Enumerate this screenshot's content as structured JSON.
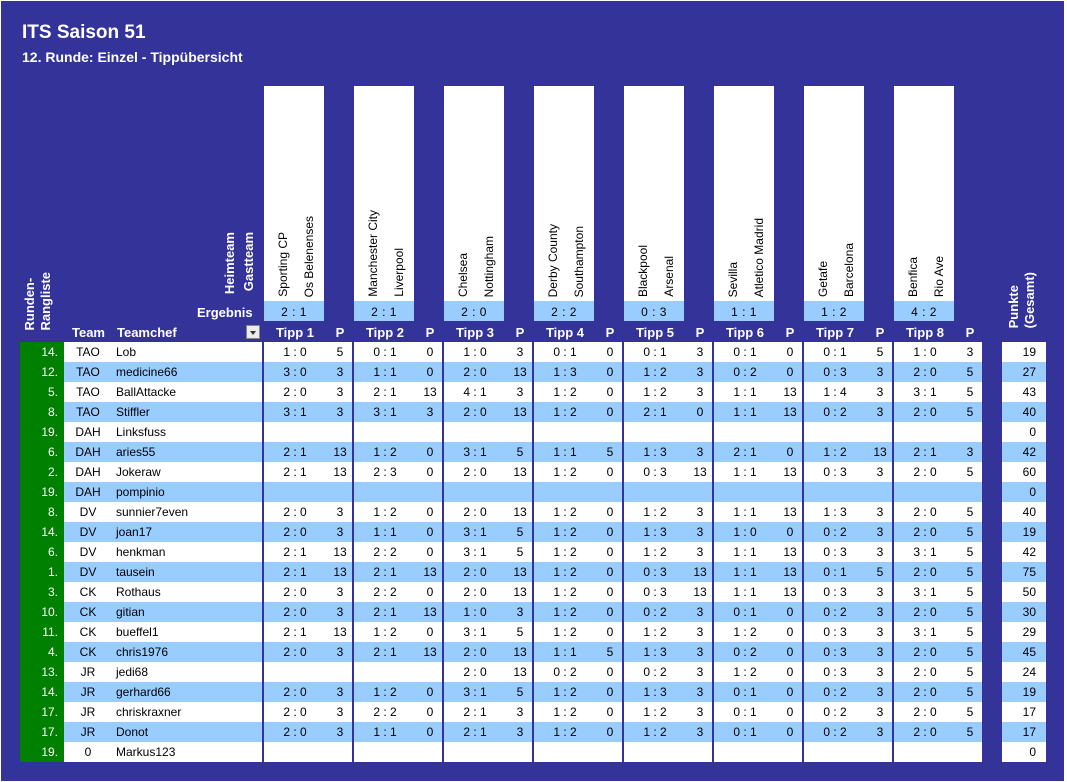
{
  "title": "ITS Saison 51",
  "subtitle": "12. Runde: Einzel - Tippübersicht",
  "labels": {
    "heimteam": "Heimteam",
    "gastteam": "Gastteam",
    "ergebnis": "Ergebnis",
    "runden_rangliste": "Runden-\nRangliste",
    "team": "Team",
    "teamchef": "Teamchef",
    "punkte_gesamt": "Punkte\n(Gesamt)",
    "p": "P"
  },
  "matches": [
    {
      "tipp_label": "Tipp 1",
      "home": "Sporting CP",
      "away": "Os Belenenses",
      "result": "2 : 1"
    },
    {
      "tipp_label": "Tipp 2",
      "home": "Manchester City",
      "away": "Liverpool",
      "result": "2 : 1"
    },
    {
      "tipp_label": "Tipp 3",
      "home": "Chelsea",
      "away": "Nottingham",
      "result": "2 : 0"
    },
    {
      "tipp_label": "Tipp 4",
      "home": "Derby County",
      "away": "Southampton",
      "result": "2 : 2"
    },
    {
      "tipp_label": "Tipp 5",
      "home": "Blackpool",
      "away": "Arsenal",
      "result": "0 : 3"
    },
    {
      "tipp_label": "Tipp 6",
      "home": "Sevilla",
      "away": "Atletico Madrid",
      "result": "1 : 1"
    },
    {
      "tipp_label": "Tipp 7",
      "home": "Getafe",
      "away": "Barcelona",
      "result": "1 : 2"
    },
    {
      "tipp_label": "Tipp 8",
      "home": "Benfica",
      "away": "Rio Ave",
      "result": "4 : 2"
    }
  ],
  "rows": [
    {
      "rank": "14.",
      "team": "TAO",
      "chef": "Lob",
      "tips": [
        [
          "1 : 0",
          "5"
        ],
        [
          "0 : 1",
          "0"
        ],
        [
          "1 : 0",
          "3"
        ],
        [
          "0 : 1",
          "0"
        ],
        [
          "0 : 1",
          "3"
        ],
        [
          "0 : 1",
          "0"
        ],
        [
          "0 : 1",
          "5"
        ],
        [
          "1 : 0",
          "3"
        ]
      ],
      "total": "19"
    },
    {
      "rank": "12.",
      "team": "TAO",
      "chef": "medicine66",
      "tips": [
        [
          "3 : 0",
          "3"
        ],
        [
          "1 : 1",
          "0"
        ],
        [
          "2 : 0",
          "13"
        ],
        [
          "1 : 3",
          "0"
        ],
        [
          "1 : 2",
          "3"
        ],
        [
          "0 : 2",
          "0"
        ],
        [
          "0 : 3",
          "3"
        ],
        [
          "2 : 0",
          "5"
        ]
      ],
      "total": "27"
    },
    {
      "rank": "5.",
      "team": "TAO",
      "chef": "BallAttacke",
      "tips": [
        [
          "2 : 0",
          "3"
        ],
        [
          "2 : 1",
          "13"
        ],
        [
          "4 : 1",
          "3"
        ],
        [
          "1 : 2",
          "0"
        ],
        [
          "1 : 2",
          "3"
        ],
        [
          "1 : 1",
          "13"
        ],
        [
          "1 : 4",
          "3"
        ],
        [
          "3 : 1",
          "5"
        ]
      ],
      "total": "43"
    },
    {
      "rank": "8.",
      "team": "TAO",
      "chef": "Stiffler",
      "tips": [
        [
          "3 : 1",
          "3"
        ],
        [
          "3 : 1",
          "3"
        ],
        [
          "2 : 0",
          "13"
        ],
        [
          "1 : 2",
          "0"
        ],
        [
          "2 : 1",
          "0"
        ],
        [
          "1 : 1",
          "13"
        ],
        [
          "0 : 2",
          "3"
        ],
        [
          "2 : 0",
          "5"
        ]
      ],
      "total": "40"
    },
    {
      "rank": "19.",
      "team": "DAH",
      "chef": "Linksfuss",
      "tips": [
        [
          "",
          ""
        ],
        [
          "",
          ""
        ],
        [
          "",
          ""
        ],
        [
          "",
          ""
        ],
        [
          "",
          ""
        ],
        [
          "",
          ""
        ],
        [
          "",
          ""
        ],
        [
          "",
          ""
        ]
      ],
      "total": "0"
    },
    {
      "rank": "6.",
      "team": "DAH",
      "chef": "aries55",
      "tips": [
        [
          "2 : 1",
          "13"
        ],
        [
          "1 : 2",
          "0"
        ],
        [
          "3 : 1",
          "5"
        ],
        [
          "1 : 1",
          "5"
        ],
        [
          "1 : 3",
          "3"
        ],
        [
          "2 : 1",
          "0"
        ],
        [
          "1 : 2",
          "13"
        ],
        [
          "2 : 1",
          "3"
        ]
      ],
      "total": "42"
    },
    {
      "rank": "2.",
      "team": "DAH",
      "chef": "Jokeraw",
      "tips": [
        [
          "2 : 1",
          "13"
        ],
        [
          "2 : 3",
          "0"
        ],
        [
          "2 : 0",
          "13"
        ],
        [
          "1 : 2",
          "0"
        ],
        [
          "0 : 3",
          "13"
        ],
        [
          "1 : 1",
          "13"
        ],
        [
          "0 : 3",
          "3"
        ],
        [
          "2 : 0",
          "5"
        ]
      ],
      "total": "60"
    },
    {
      "rank": "19.",
      "team": "DAH",
      "chef": "pompinio",
      "tips": [
        [
          "",
          ""
        ],
        [
          "",
          ""
        ],
        [
          "",
          ""
        ],
        [
          "",
          ""
        ],
        [
          "",
          ""
        ],
        [
          "",
          ""
        ],
        [
          "",
          ""
        ],
        [
          "",
          ""
        ]
      ],
      "total": "0"
    },
    {
      "rank": "8.",
      "team": "DV",
      "chef": "sunnier7even",
      "tips": [
        [
          "2 : 0",
          "3"
        ],
        [
          "1 : 2",
          "0"
        ],
        [
          "2 : 0",
          "13"
        ],
        [
          "1 : 2",
          "0"
        ],
        [
          "1 : 2",
          "3"
        ],
        [
          "1 : 1",
          "13"
        ],
        [
          "1 : 3",
          "3"
        ],
        [
          "2 : 0",
          "5"
        ]
      ],
      "total": "40"
    },
    {
      "rank": "14.",
      "team": "DV",
      "chef": "joan17",
      "tips": [
        [
          "2 : 0",
          "3"
        ],
        [
          "1 : 1",
          "0"
        ],
        [
          "3 : 1",
          "5"
        ],
        [
          "1 : 2",
          "0"
        ],
        [
          "1 : 3",
          "3"
        ],
        [
          "1 : 0",
          "0"
        ],
        [
          "0 : 2",
          "3"
        ],
        [
          "2 : 0",
          "5"
        ]
      ],
      "total": "19"
    },
    {
      "rank": "6.",
      "team": "DV",
      "chef": "henkman",
      "tips": [
        [
          "2 : 1",
          "13"
        ],
        [
          "2 : 2",
          "0"
        ],
        [
          "3 : 1",
          "5"
        ],
        [
          "1 : 2",
          "0"
        ],
        [
          "1 : 2",
          "3"
        ],
        [
          "1 : 1",
          "13"
        ],
        [
          "0 : 3",
          "3"
        ],
        [
          "3 : 1",
          "5"
        ]
      ],
      "total": "42"
    },
    {
      "rank": "1.",
      "team": "DV",
      "chef": "tausein",
      "tips": [
        [
          "2 : 1",
          "13"
        ],
        [
          "2 : 1",
          "13"
        ],
        [
          "2 : 0",
          "13"
        ],
        [
          "1 : 2",
          "0"
        ],
        [
          "0 : 3",
          "13"
        ],
        [
          "1 : 1",
          "13"
        ],
        [
          "0 : 1",
          "5"
        ],
        [
          "2 : 0",
          "5"
        ]
      ],
      "total": "75"
    },
    {
      "rank": "3.",
      "team": "CK",
      "chef": "Rothaus",
      "tips": [
        [
          "2 : 0",
          "3"
        ],
        [
          "2 : 2",
          "0"
        ],
        [
          "2 : 0",
          "13"
        ],
        [
          "1 : 2",
          "0"
        ],
        [
          "0 : 3",
          "13"
        ],
        [
          "1 : 1",
          "13"
        ],
        [
          "0 : 3",
          "3"
        ],
        [
          "3 : 1",
          "5"
        ]
      ],
      "total": "50"
    },
    {
      "rank": "10.",
      "team": "CK",
      "chef": "gitian",
      "tips": [
        [
          "2 : 0",
          "3"
        ],
        [
          "2 : 1",
          "13"
        ],
        [
          "1 : 0",
          "3"
        ],
        [
          "1 : 2",
          "0"
        ],
        [
          "0 : 2",
          "3"
        ],
        [
          "0 : 1",
          "0"
        ],
        [
          "0 : 2",
          "3"
        ],
        [
          "2 : 0",
          "5"
        ]
      ],
      "total": "30"
    },
    {
      "rank": "11.",
      "team": "CK",
      "chef": "bueffel1",
      "tips": [
        [
          "2 : 1",
          "13"
        ],
        [
          "1 : 2",
          "0"
        ],
        [
          "3 : 1",
          "5"
        ],
        [
          "1 : 2",
          "0"
        ],
        [
          "1 : 2",
          "3"
        ],
        [
          "1 : 2",
          "0"
        ],
        [
          "0 : 3",
          "3"
        ],
        [
          "3 : 1",
          "5"
        ]
      ],
      "total": "29"
    },
    {
      "rank": "4.",
      "team": "CK",
      "chef": "chris1976",
      "tips": [
        [
          "2 : 0",
          "3"
        ],
        [
          "2 : 1",
          "13"
        ],
        [
          "2 : 0",
          "13"
        ],
        [
          "1 : 1",
          "5"
        ],
        [
          "1 : 3",
          "3"
        ],
        [
          "0 : 2",
          "0"
        ],
        [
          "0 : 3",
          "3"
        ],
        [
          "2 : 0",
          "5"
        ]
      ],
      "total": "45"
    },
    {
      "rank": "13.",
      "team": "JR",
      "chef": "jedi68",
      "tips": [
        [
          "",
          ""
        ],
        [
          "",
          ""
        ],
        [
          "2 : 0",
          "13"
        ],
        [
          "0 : 2",
          "0"
        ],
        [
          "0 : 2",
          "3"
        ],
        [
          "1 : 2",
          "0"
        ],
        [
          "0 : 3",
          "3"
        ],
        [
          "2 : 0",
          "5"
        ]
      ],
      "total": "24"
    },
    {
      "rank": "14.",
      "team": "JR",
      "chef": "gerhard66",
      "tips": [
        [
          "2 : 0",
          "3"
        ],
        [
          "1 : 2",
          "0"
        ],
        [
          "3 : 1",
          "5"
        ],
        [
          "1 : 2",
          "0"
        ],
        [
          "1 : 3",
          "3"
        ],
        [
          "0 : 1",
          "0"
        ],
        [
          "0 : 2",
          "3"
        ],
        [
          "2 : 0",
          "5"
        ]
      ],
      "total": "19"
    },
    {
      "rank": "17.",
      "team": "JR",
      "chef": "chriskraxner",
      "tips": [
        [
          "2 : 0",
          "3"
        ],
        [
          "2 : 2",
          "0"
        ],
        [
          "2 : 1",
          "3"
        ],
        [
          "1 : 2",
          "0"
        ],
        [
          "1 : 2",
          "3"
        ],
        [
          "0 : 1",
          "0"
        ],
        [
          "0 : 2",
          "3"
        ],
        [
          "2 : 0",
          "5"
        ]
      ],
      "total": "17"
    },
    {
      "rank": "17.",
      "team": "JR",
      "chef": "Donot",
      "tips": [
        [
          "2 : 0",
          "3"
        ],
        [
          "1 : 1",
          "0"
        ],
        [
          "2 : 1",
          "3"
        ],
        [
          "1 : 2",
          "0"
        ],
        [
          "1 : 2",
          "3"
        ],
        [
          "0 : 1",
          "0"
        ],
        [
          "0 : 2",
          "3"
        ],
        [
          "2 : 0",
          "5"
        ]
      ],
      "total": "17"
    },
    {
      "rank": "19.",
      "team": "0",
      "chef": "Markus123",
      "tips": [
        [
          "",
          ""
        ],
        [
          "",
          ""
        ],
        [
          "",
          ""
        ],
        [
          "",
          ""
        ],
        [
          "",
          ""
        ],
        [
          "",
          ""
        ],
        [
          "",
          ""
        ],
        [
          "",
          ""
        ]
      ],
      "total": "0"
    }
  ]
}
